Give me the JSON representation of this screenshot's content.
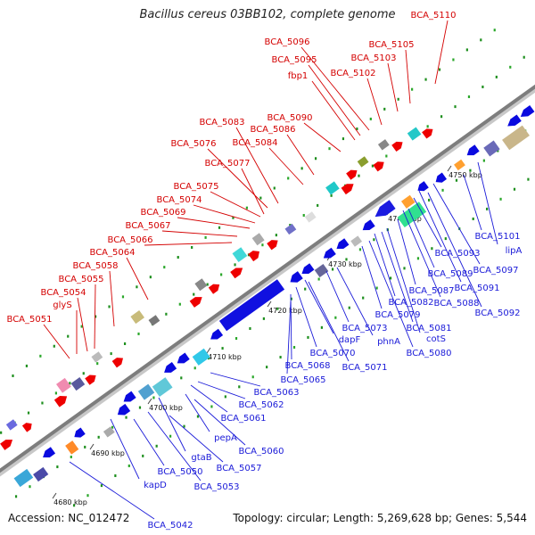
{
  "title": "Bacillus cereus 03BB102, complete genome",
  "footer": {
    "accession": "Accession: NC_012472",
    "stats": "Topology: circular; Length: 5,269,628 bp; Genes: 5,544"
  },
  "colors": {
    "forward_label": "#d40000",
    "reverse_label": "#1a1ad8",
    "backbone": "#8a8a8a",
    "forward_gene": "#ee0000",
    "reverse_gene": "#0a0adf"
  },
  "ticks": [
    "4680 kbp",
    "4690 kbp",
    "4700 kbp",
    "4710 kbp",
    "4720 kbp",
    "4730 kbp",
    "4740 kbp",
    "4750 kbp"
  ],
  "forward_labels": [
    "BCA_5110",
    "BCA_5105",
    "BCA_5103",
    "BCA_5102",
    "BCA_5096",
    "BCA_5095",
    "fbp1",
    "BCA_5090",
    "BCA_5086",
    "BCA_5084",
    "BCA_5083",
    "BCA_5076",
    "BCA_5077",
    "BCA_5075",
    "BCA_5074",
    "BCA_5069",
    "BCA_5067",
    "BCA_5066",
    "BCA_5064",
    "BCA_5058",
    "BCA_5055",
    "BCA_5054",
    "glyS",
    "BCA_5051"
  ],
  "reverse_labels": [
    "BCA_5101",
    "lipA",
    "BCA_5097",
    "BCA_5093",
    "BCA_5091",
    "BCA_5089",
    "BCA_5092",
    "BCA_5087",
    "BCA_5088",
    "BCA_5082",
    "BCA_5079",
    "BCA_5081",
    "cotS",
    "BCA_5080",
    "phnA",
    "BCA_5073",
    "dapF",
    "BCA_5070",
    "BCA_5071",
    "BCA_5068",
    "BCA_5065",
    "BCA_5063",
    "BCA_5062",
    "BCA_5061",
    "pepA",
    "BCA_5060",
    "gtaB",
    "BCA_5057",
    "BCA_5050",
    "BCA_5053",
    "kapD",
    "BCA_5042"
  ]
}
